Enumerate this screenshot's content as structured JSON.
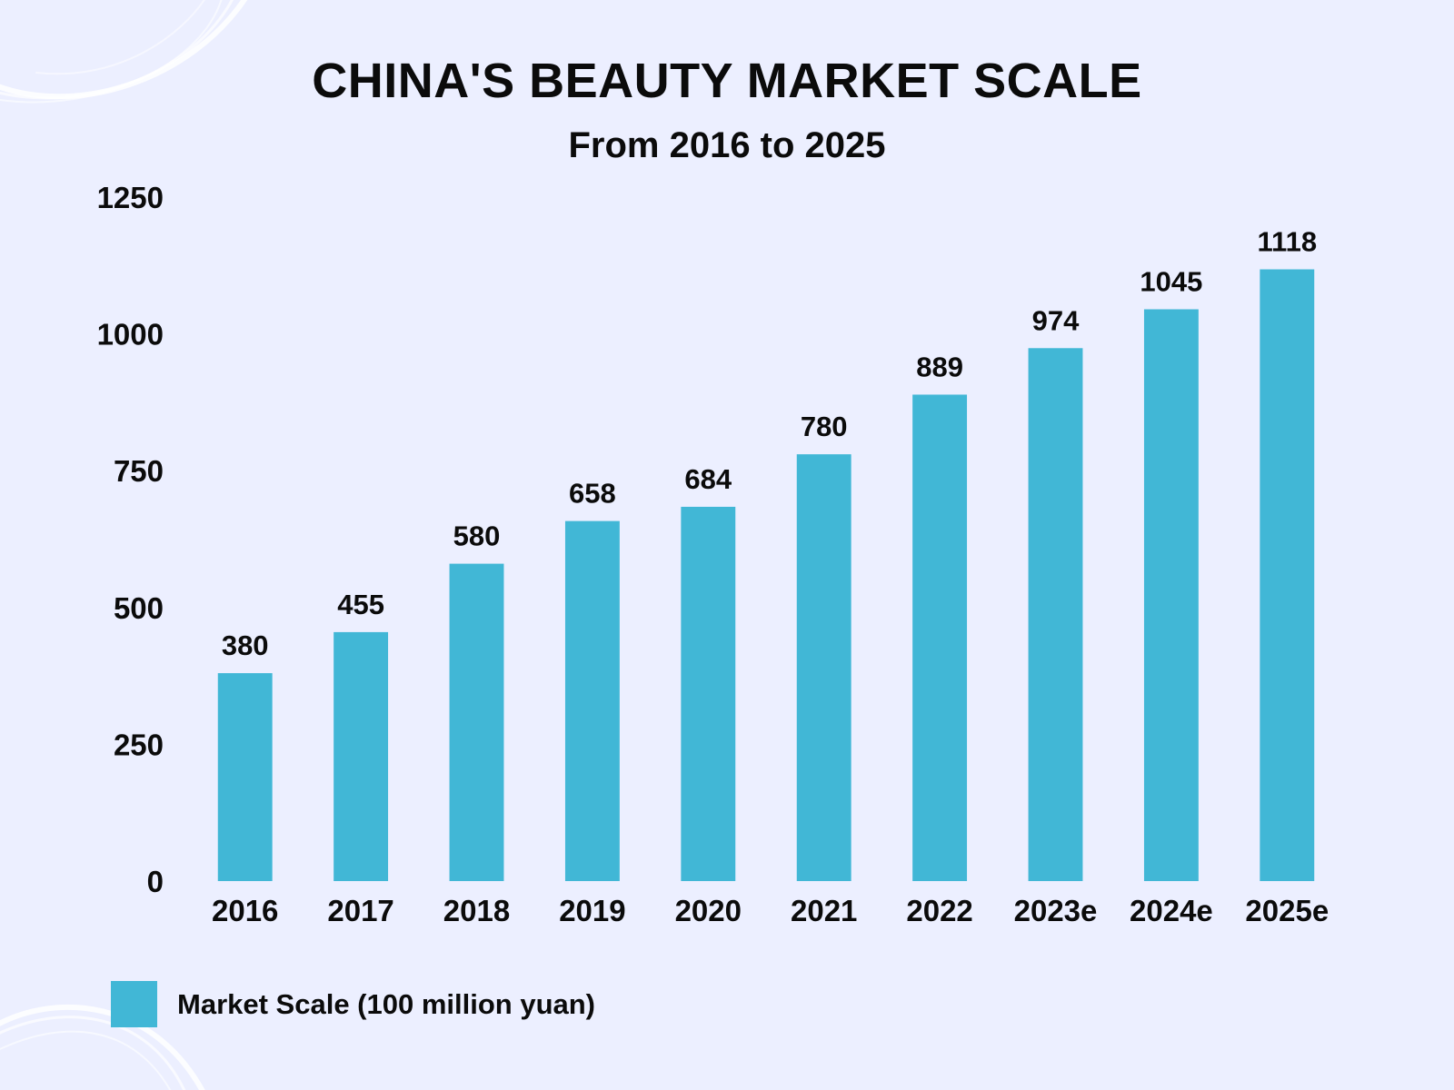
{
  "header": {
    "title": "CHINA'S BEAUTY MARKET SCALE",
    "subtitle": "From 2016 to 2025"
  },
  "legend": {
    "label": "Market Scale (100 million yuan)"
  },
  "colors": {
    "background": "#ecefff",
    "bar": "#41b7d6",
    "text": "#0b0b0b",
    "decoration": "#ffffff"
  },
  "chart_data": {
    "type": "bar",
    "title": "CHINA'S BEAUTY MARKET SCALE",
    "subtitle": "From 2016 to 2025",
    "categories": [
      "2016",
      "2017",
      "2018",
      "2019",
      "2020",
      "2021",
      "2022",
      "2023e",
      "2024e",
      "2025e"
    ],
    "series": [
      {
        "name": "Market Scale (100 million yuan)",
        "values": [
          380,
          455,
          580,
          658,
          684,
          780,
          889,
          974,
          1045,
          1118
        ]
      }
    ],
    "value_labels": [
      "380",
      "455",
      "580",
      "658",
      "684",
      "780",
      "889",
      "974",
      "1045",
      "1118"
    ],
    "xlabel": "",
    "ylabel": "",
    "ylim": [
      0,
      1250
    ],
    "yticks": [
      0,
      250,
      500,
      750,
      1000,
      1250
    ],
    "ytick_labels": [
      "0",
      "250",
      "500",
      "750",
      "1000",
      "1250"
    ],
    "grid": false,
    "legend_position": "bottom-left"
  }
}
